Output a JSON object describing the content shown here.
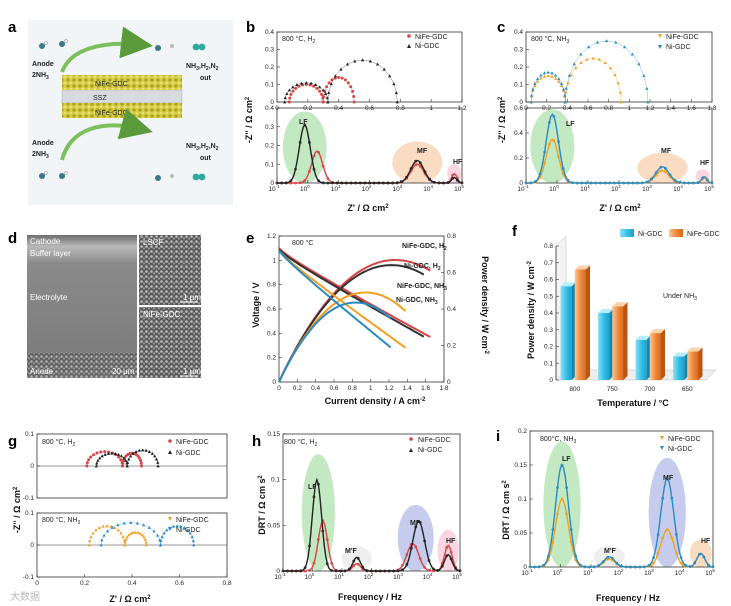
{
  "figure": {
    "panels": [
      "a",
      "b",
      "c",
      "d",
      "e",
      "f",
      "g",
      "h",
      "i"
    ],
    "watermark": "大数据",
    "colors": {
      "nife": "#d64545",
      "ni": "#222222",
      "nife_nh3": "#f0a020",
      "ni_nh3": "#2a8bc0",
      "lf": "#7ccf7c",
      "mf": "#f2b27a",
      "hf": "#f5a5c0",
      "mf_blue": "#8090d8"
    }
  },
  "panel_a": {
    "anode_top": "Anode",
    "nh3_top": "2NH",
    "sub3": "3",
    "nife_top": "NiFe-GDC",
    "ssz": "SSZ",
    "nife_bottom": "NiFe-GDC",
    "anode_bottom": "Anode",
    "nh3_bottom": "2NH",
    "out_top": "NH",
    "out_bottom": "NH",
    "out_rest": ",H",
    "out_n": ",N",
    "sub2": "2",
    "out_word": "out"
  },
  "panel_b": {
    "condition": "800 °C, H",
    "cond_sub": "2",
    "legend": [
      "NiFe-GDC",
      "Ni-GDC"
    ],
    "ylabel": "-Z'' / Ω cm",
    "xlabel": "Z' / Ω cm",
    "sup2": "2",
    "peaks": [
      "LF",
      "MF",
      "HF"
    ]
  },
  "panel_c": {
    "condition": "800 °C, NH",
    "cond_sub": "3",
    "legend": [
      "NiFe-GDC",
      "Ni-GDC"
    ],
    "ylabel": "-Z'' / Ω cm",
    "xlabel": "Z' / Ω cm",
    "sup2": "2",
    "peaks": [
      "LF",
      "MF",
      "HF"
    ]
  },
  "panel_d": {
    "cathode": "Cathode",
    "buffer": "Buffer layer",
    "electrolyte": "Electrolyte",
    "anode": "Anode",
    "lscf": "LSCF",
    "nife": "NiFe-GDC",
    "scale_big": "20 μm",
    "scale_small_top": "1 μm",
    "scale_small_bottom": "1 μm"
  },
  "panel_e": {
    "condition": "800 °C",
    "labels": [
      "NiFe-GDC, H",
      "Ni-GDC, H",
      "NiFe-GDC, NH",
      "Ni-GDC, NH"
    ],
    "subs": [
      "2",
      "2",
      "3",
      "3"
    ],
    "xlabel": "Current density / A cm",
    "xsup": "-2",
    "ylabel": "Voltage / V",
    "y2label": "Power density / W cm",
    "y2sup": "-2"
  },
  "panel_f": {
    "legend": [
      "Ni-GDC",
      "NiFe-GDC"
    ],
    "note": "Under NH",
    "note_sub": "3",
    "xlabel": "Temperature / °C",
    "ylabel": "Power density / W cm",
    "ysup": "-2"
  },
  "panel_g": {
    "cond_top": "800 °C, H",
    "cond_top_sub": "2",
    "cond_bottom": "800 °C, NH",
    "cond_bottom_sub": "3",
    "legend_top": [
      "NiFe-GDC",
      "Ni-GDC"
    ],
    "legend_bottom": [
      "NiFe-GDC",
      "Ni-GDC"
    ],
    "xlabel": "Z' / Ω cm",
    "ylabel": "-Z'' / Ω cm",
    "sup2": "2"
  },
  "panel_h": {
    "condition": "800 °C, H",
    "cond_sub": "2",
    "legend": [
      "NiFe-GDC",
      "Ni-GDC"
    ],
    "peaks": [
      "LF",
      "M'F",
      "MF",
      "HF"
    ],
    "xlabel": "Frequency / Hz",
    "ylabel": "DRT / Ω cm s",
    "sup2": "2"
  },
  "panel_i": {
    "condition": "800°C, NH",
    "cond_sub": "3",
    "legend": [
      "NiFe-GDC",
      "Ni-GDC"
    ],
    "peaks": [
      "LF",
      "M'F",
      "MF",
      "HF"
    ],
    "xlabel": "Frequency / Hz",
    "ylabel": "DRT / Ω cm s",
    "sup2": "2"
  },
  "chart_data": [
    {
      "id": "b_top",
      "type": "scatter",
      "title": "800 °C, H2 Nyquist",
      "xlabel": "Z' / Ω cm2",
      "ylabel": "-Z'' / Ω cm2",
      "xlim": [
        0,
        1.2
      ],
      "ylim": [
        0,
        0.4
      ],
      "xticks": [
        0,
        0.2,
        0.4,
        0.6,
        0.8,
        1.0,
        1.2
      ],
      "yticks": [
        0,
        0.1,
        0.2,
        0.3,
        0.4
      ],
      "series": [
        {
          "name": "NiFe-GDC",
          "color": "#d64545",
          "arcs": [
            [
              0.08,
              0.3,
              0.1
            ],
            [
              0.3,
              0.5,
              0.14
            ]
          ]
        },
        {
          "name": "Ni-GDC",
          "color": "#222222",
          "arcs": [
            [
              0.05,
              0.33,
              0.11
            ],
            [
              0.33,
              0.78,
              0.24
            ]
          ]
        }
      ]
    },
    {
      "id": "b_drt",
      "type": "line",
      "title": "DRT",
      "xlabel": "Frequency / Hz",
      "ylabel": "DRT",
      "xlim": [
        -1,
        5
      ],
      "ylim": [
        0,
        0.4
      ],
      "xticks_exp": [
        -1,
        0,
        1,
        2,
        3,
        4,
        5
      ],
      "yticks": [
        0,
        0.1,
        0.2,
        0.3,
        0.4
      ],
      "series": [
        {
          "name": "NiFe-GDC",
          "color": "#d64545",
          "peaks": [
            [
              0.3,
              0.17,
              0.25
            ],
            [
              3.55,
              0.1,
              0.3
            ],
            [
              4.75,
              0.05,
              0.12
            ]
          ]
        },
        {
          "name": "Ni-GDC",
          "color": "#222222",
          "peaks": [
            [
              -0.1,
              0.31,
              0.25
            ],
            [
              3.55,
              0.12,
              0.3
            ],
            [
              4.75,
              0.03,
              0.12
            ]
          ]
        }
      ]
    },
    {
      "id": "c_top",
      "type": "scatter",
      "title": "800 °C, NH3 Nyquist",
      "xlabel": "Z' / Ω cm2",
      "ylabel": "-Z'' / Ω cm2",
      "xlim": [
        0,
        1.8
      ],
      "ylim": [
        0,
        0.4
      ],
      "xticks": [
        0,
        0.2,
        0.4,
        0.6,
        0.8,
        1.0,
        1.2,
        1.4,
        1.6,
        1.8
      ],
      "yticks": [
        0,
        0.1,
        0.2,
        0.3,
        0.4
      ],
      "series": [
        {
          "name": "NiFe-GDC",
          "color": "#f0a020",
          "arcs": [
            [
              0.05,
              0.38,
              0.15
            ],
            [
              0.38,
              0.92,
              0.25
            ]
          ]
        },
        {
          "name": "Ni-GDC",
          "color": "#2a8bc0",
          "arcs": [
            [
              0.05,
              0.38,
              0.17
            ],
            [
              0.38,
              1.18,
              0.35
            ]
          ]
        }
      ]
    },
    {
      "id": "c_drt",
      "type": "line",
      "title": "DRT",
      "xlim": [
        -1,
        5
      ],
      "ylim": [
        0,
        0.6
      ],
      "xticks_exp": [
        -1,
        0,
        1,
        2,
        3,
        4,
        5
      ],
      "yticks": [
        0,
        0.2,
        0.4,
        0.6
      ],
      "series": [
        {
          "name": "NiFe-GDC",
          "color": "#f0a020",
          "peaks": [
            [
              -0.15,
              0.35,
              0.28
            ],
            [
              3.4,
              0.1,
              0.3
            ],
            [
              4.75,
              0.04,
              0.12
            ]
          ]
        },
        {
          "name": "Ni-GDC",
          "color": "#2a8bc0",
          "peaks": [
            [
              -0.15,
              0.55,
              0.28
            ],
            [
              3.4,
              0.13,
              0.3
            ],
            [
              4.75,
              0.05,
              0.12
            ]
          ]
        }
      ]
    },
    {
      "id": "e",
      "type": "line",
      "title": "800 °C I-V-P",
      "xlabel": "Current density / A cm-2",
      "ylabel": "Voltage / V",
      "y2label": "Power density / W cm-2",
      "xlim": [
        0,
        1.8
      ],
      "ylim": [
        0,
        1.2
      ],
      "y2lim": [
        0,
        0.8
      ],
      "xticks": [
        0,
        0.2,
        0.4,
        0.6,
        0.8,
        1.0,
        1.2,
        1.4,
        1.6,
        1.8
      ],
      "yticks": [
        0,
        0.2,
        0.4,
        0.6,
        0.8,
        1.0,
        1.2
      ],
      "y2ticks": [
        0,
        0.2,
        0.4,
        0.6,
        0.8
      ],
      "series": [
        {
          "name": "NiFe-GDC, H2",
          "color": "#d64545",
          "ocv": 1.1,
          "slope": 0.4,
          "imax": 1.65
        },
        {
          "name": "Ni-GDC, H2",
          "color": "#333333",
          "ocv": 1.09,
          "slope": 0.41,
          "imax": 1.58
        },
        {
          "name": "NiFe-GDC, NH3",
          "color": "#f0a020",
          "ocv": 1.08,
          "slope": 0.53,
          "imax": 1.38
        },
        {
          "name": "Ni-GDC, NH3",
          "color": "#2a8bc0",
          "ocv": 1.08,
          "slope": 0.6,
          "imax": 1.22
        }
      ]
    },
    {
      "id": "f",
      "type": "bar",
      "title": "Under NH3",
      "xlabel": "Temperature / °C",
      "ylabel": "Power density / W cm-2",
      "categories": [
        "800",
        "750",
        "700",
        "650"
      ],
      "ylim": [
        0,
        0.8
      ],
      "yticks": [
        0,
        0.1,
        0.2,
        0.3,
        0.4,
        0.5,
        0.6,
        0.7,
        0.8
      ],
      "series": [
        {
          "name": "Ni-GDC",
          "color": "#34c2e8",
          "values": [
            0.56,
            0.4,
            0.24,
            0.14
          ]
        },
        {
          "name": "NiFe-GDC",
          "color": "#f08a3c",
          "values": [
            0.66,
            0.44,
            0.28,
            0.17
          ]
        }
      ]
    },
    {
      "id": "g_top",
      "type": "scatter",
      "title": "800 °C, H2",
      "xlim": [
        0,
        0.8
      ],
      "ylim": [
        -0.1,
        0.1
      ],
      "yticks": [
        -0.1,
        0.0,
        0.1
      ],
      "series": [
        {
          "name": "NiFe-GDC",
          "color": "#d64545",
          "arcs": [
            [
              0.21,
              0.36,
              0.045
            ],
            [
              0.36,
              0.44,
              0.04
            ]
          ]
        },
        {
          "name": "Ni-GDC",
          "color": "#222222",
          "arcs": [
            [
              0.25,
              0.38,
              0.04
            ],
            [
              0.38,
              0.51,
              0.05
            ]
          ]
        }
      ]
    },
    {
      "id": "g_bottom",
      "type": "scatter",
      "title": "800 °C, NH3",
      "xlabel": "Z' / Ω cm2",
      "xlim": [
        0,
        0.8
      ],
      "ylim": [
        -0.1,
        0.1
      ],
      "xticks": [
        0,
        0.2,
        0.4,
        0.6,
        0.8
      ],
      "yticks": [
        -0.1,
        0.0,
        0.1
      ],
      "series": [
        {
          "name": "NiFe-GDC",
          "color": "#f0a020",
          "arcs": [
            [
              0.22,
              0.37,
              0.06
            ],
            [
              0.37,
              0.46,
              0.04
            ]
          ]
        },
        {
          "name": "Ni-GDC",
          "color": "#2a8bc0",
          "arcs": [
            [
              0.27,
              0.52,
              0.07
            ],
            [
              0.52,
              0.66,
              0.06
            ]
          ]
        }
      ]
    },
    {
      "id": "h",
      "type": "line",
      "title": "800 °C, H2 DRT",
      "xlabel": "Frequency / Hz",
      "ylabel": "DRT / Ω cm2 s",
      "xlim": [
        -1,
        5
      ],
      "ylim": [
        0,
        0.15
      ],
      "yticks": [
        0,
        0.05,
        0.1,
        0.15
      ],
      "series": [
        {
          "name": "NiFe-GDC",
          "color": "#d64545",
          "peaks": [
            [
              0.35,
              0.055,
              0.22
            ],
            [
              1.5,
              0.008,
              0.18
            ],
            [
              3.4,
              0.03,
              0.28
            ],
            [
              4.6,
              0.028,
              0.18
            ]
          ]
        },
        {
          "name": "Ni-GDC",
          "color": "#222222",
          "peaks": [
            [
              0.15,
              0.1,
              0.22
            ],
            [
              1.5,
              0.015,
              0.18
            ],
            [
              3.6,
              0.055,
              0.28
            ],
            [
              4.6,
              0.018,
              0.18
            ]
          ]
        }
      ]
    },
    {
      "id": "i",
      "type": "line",
      "title": "800°C, NH3 DRT",
      "xlabel": "Frequency / Hz",
      "ylabel": "DRT / Ω cm2 s",
      "xlim": [
        -1,
        5
      ],
      "ylim": [
        0,
        0.2
      ],
      "yticks": [
        0,
        0.05,
        0.1,
        0.15,
        0.2
      ],
      "series": [
        {
          "name": "NiFe-GDC",
          "color": "#f0a020",
          "peaks": [
            [
              0.05,
              0.1,
              0.3
            ],
            [
              1.6,
              0.012,
              0.25
            ],
            [
              3.5,
              0.055,
              0.3
            ],
            [
              4.6,
              0.02,
              0.18
            ]
          ]
        },
        {
          "name": "Ni-GDC",
          "color": "#2a8bc0",
          "peaks": [
            [
              0.05,
              0.15,
              0.3
            ],
            [
              1.6,
              0.015,
              0.25
            ],
            [
              3.5,
              0.13,
              0.3
            ],
            [
              4.6,
              0.02,
              0.18
            ]
          ]
        }
      ]
    }
  ]
}
